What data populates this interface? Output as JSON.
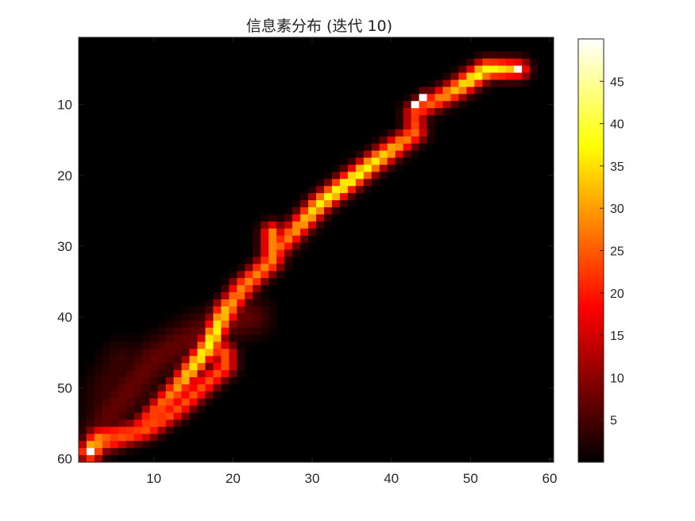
{
  "chart_data": {
    "type": "heatmap",
    "title": "信息素分布 (迭代 10)",
    "xlabel": "",
    "ylabel": "",
    "xlim": [
      0.5,
      60.5
    ],
    "ylim": [
      0.5,
      60.5
    ],
    "y_reversed": true,
    "x_ticks": [
      "10",
      "20",
      "30",
      "40",
      "50",
      "60"
    ],
    "y_ticks": [
      "10",
      "20",
      "30",
      "40",
      "50",
      "60"
    ],
    "colormap": "hot",
    "colorbar": {
      "clim": [
        0,
        50
      ],
      "ticks": [
        "5",
        "10",
        "15",
        "20",
        "25",
        "30",
        "35",
        "40",
        "45"
      ]
    },
    "main_path": [
      [
        56,
        5
      ],
      [
        52,
        5
      ],
      [
        48,
        8
      ],
      [
        43,
        11
      ],
      [
        43,
        14
      ],
      [
        38,
        18
      ],
      [
        31,
        24
      ],
      [
        26,
        30
      ],
      [
        23,
        34
      ],
      [
        19,
        39
      ],
      [
        17,
        44
      ],
      [
        13,
        50
      ],
      [
        8,
        56
      ],
      [
        3,
        57
      ],
      [
        2,
        59
      ]
    ],
    "branches": [
      {
        "points": [
          [
            25,
            28
          ],
          [
            25,
            32
          ],
          [
            21,
            36
          ],
          [
            19,
            40
          ]
        ],
        "peak": 28
      },
      {
        "points": [
          [
            17,
            44
          ],
          [
            19,
            45
          ],
          [
            19,
            47
          ],
          [
            16,
            50
          ],
          [
            13,
            53
          ],
          [
            9,
            56
          ],
          [
            3,
            58
          ]
        ],
        "peak": 24
      },
      {
        "points": [
          [
            3,
            57
          ],
          [
            5,
            53
          ],
          [
            10,
            46
          ],
          [
            16,
            42
          ],
          [
            22,
            40
          ]
        ],
        "peak": 7
      },
      {
        "points": [
          [
            3,
            58
          ],
          [
            4,
            50
          ],
          [
            6,
            46
          ]
        ],
        "peak": 4
      }
    ],
    "hotspots": [
      [
        43,
        10
      ],
      [
        44,
        9
      ],
      [
        56,
        5
      ],
      [
        2,
        59
      ]
    ],
    "value_range": [
      0,
      50
    ]
  }
}
